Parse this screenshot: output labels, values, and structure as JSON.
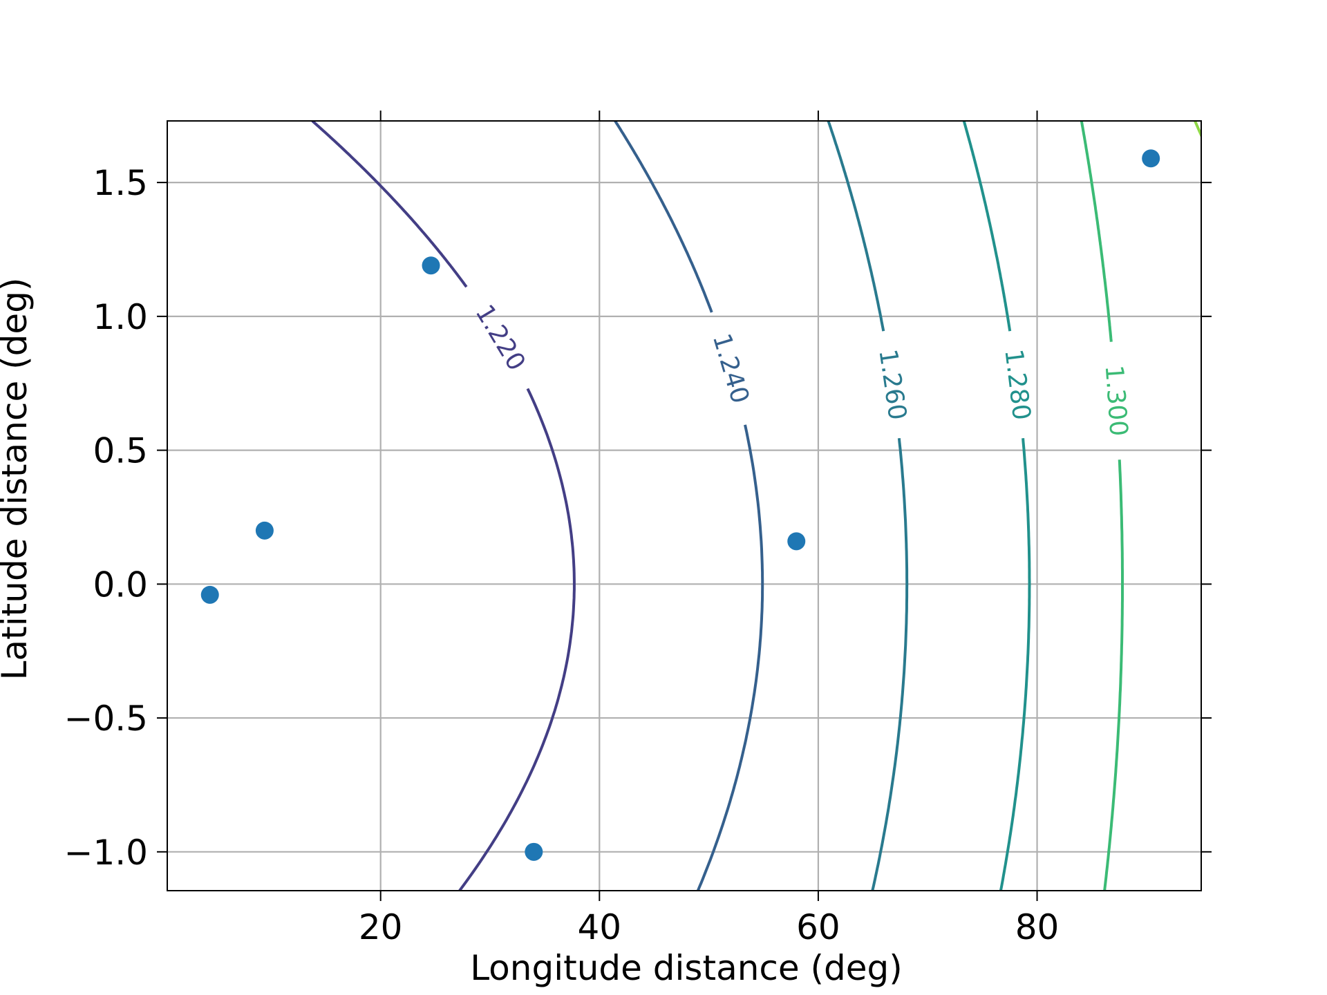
{
  "chart_data": {
    "type": "scatter",
    "xlabel": "Longitude distance (deg)",
    "ylabel": "Latitude distance (deg)",
    "xlim": [
      0.5,
      95.0
    ],
    "ylim": [
      -1.145,
      1.73
    ],
    "xticks": [
      20,
      40,
      60,
      80
    ],
    "xtick_labels": [
      "20",
      "40",
      "60",
      "80"
    ],
    "yticks": [
      -1.0,
      -0.5,
      0.0,
      0.5,
      1.0,
      1.5
    ],
    "ytick_labels": [
      "−1.0",
      "−0.5",
      "0.0",
      "0.5",
      "1.0",
      "1.5"
    ],
    "grid": true,
    "series": [
      {
        "kind": "points",
        "color": "#1f77b4",
        "points": [
          {
            "x": 4.4,
            "y": -0.04
          },
          {
            "x": 9.4,
            "y": 0.2
          },
          {
            "x": 24.6,
            "y": 1.19
          },
          {
            "x": 34.0,
            "y": -1.0
          },
          {
            "x": 58.0,
            "y": 0.16
          },
          {
            "x": 90.4,
            "y": 1.59
          }
        ]
      }
    ],
    "contours": [
      {
        "level": "1.220",
        "color": "#433e85",
        "x_center": 37.7,
        "curvature": 8.0,
        "label_y": 0.92,
        "label_half_gap": 0.19
      },
      {
        "level": "1.240",
        "color": "#35608d",
        "x_center": 54.9,
        "curvature": 4.5,
        "label_y": 0.805,
        "label_half_gap": 0.21
      },
      {
        "level": "1.260",
        "color": "#297a8e",
        "x_center": 68.1,
        "curvature": 2.4,
        "label_y": 0.745,
        "label_half_gap": 0.2
      },
      {
        "level": "1.280",
        "color": "#21918c",
        "x_center": 79.3,
        "curvature": 2.0,
        "label_y": 0.745,
        "label_half_gap": 0.2
      },
      {
        "level": "1.300",
        "color": "#3bbb75",
        "x_center": 87.8,
        "curvature": 1.25,
        "label_y": 0.685,
        "label_half_gap": 0.22
      },
      {
        "level": "",
        "color": "#8ed645",
        "x_center": 104.0,
        "curvature": 3.2,
        "label_y": null,
        "label_half_gap": 0
      }
    ]
  }
}
